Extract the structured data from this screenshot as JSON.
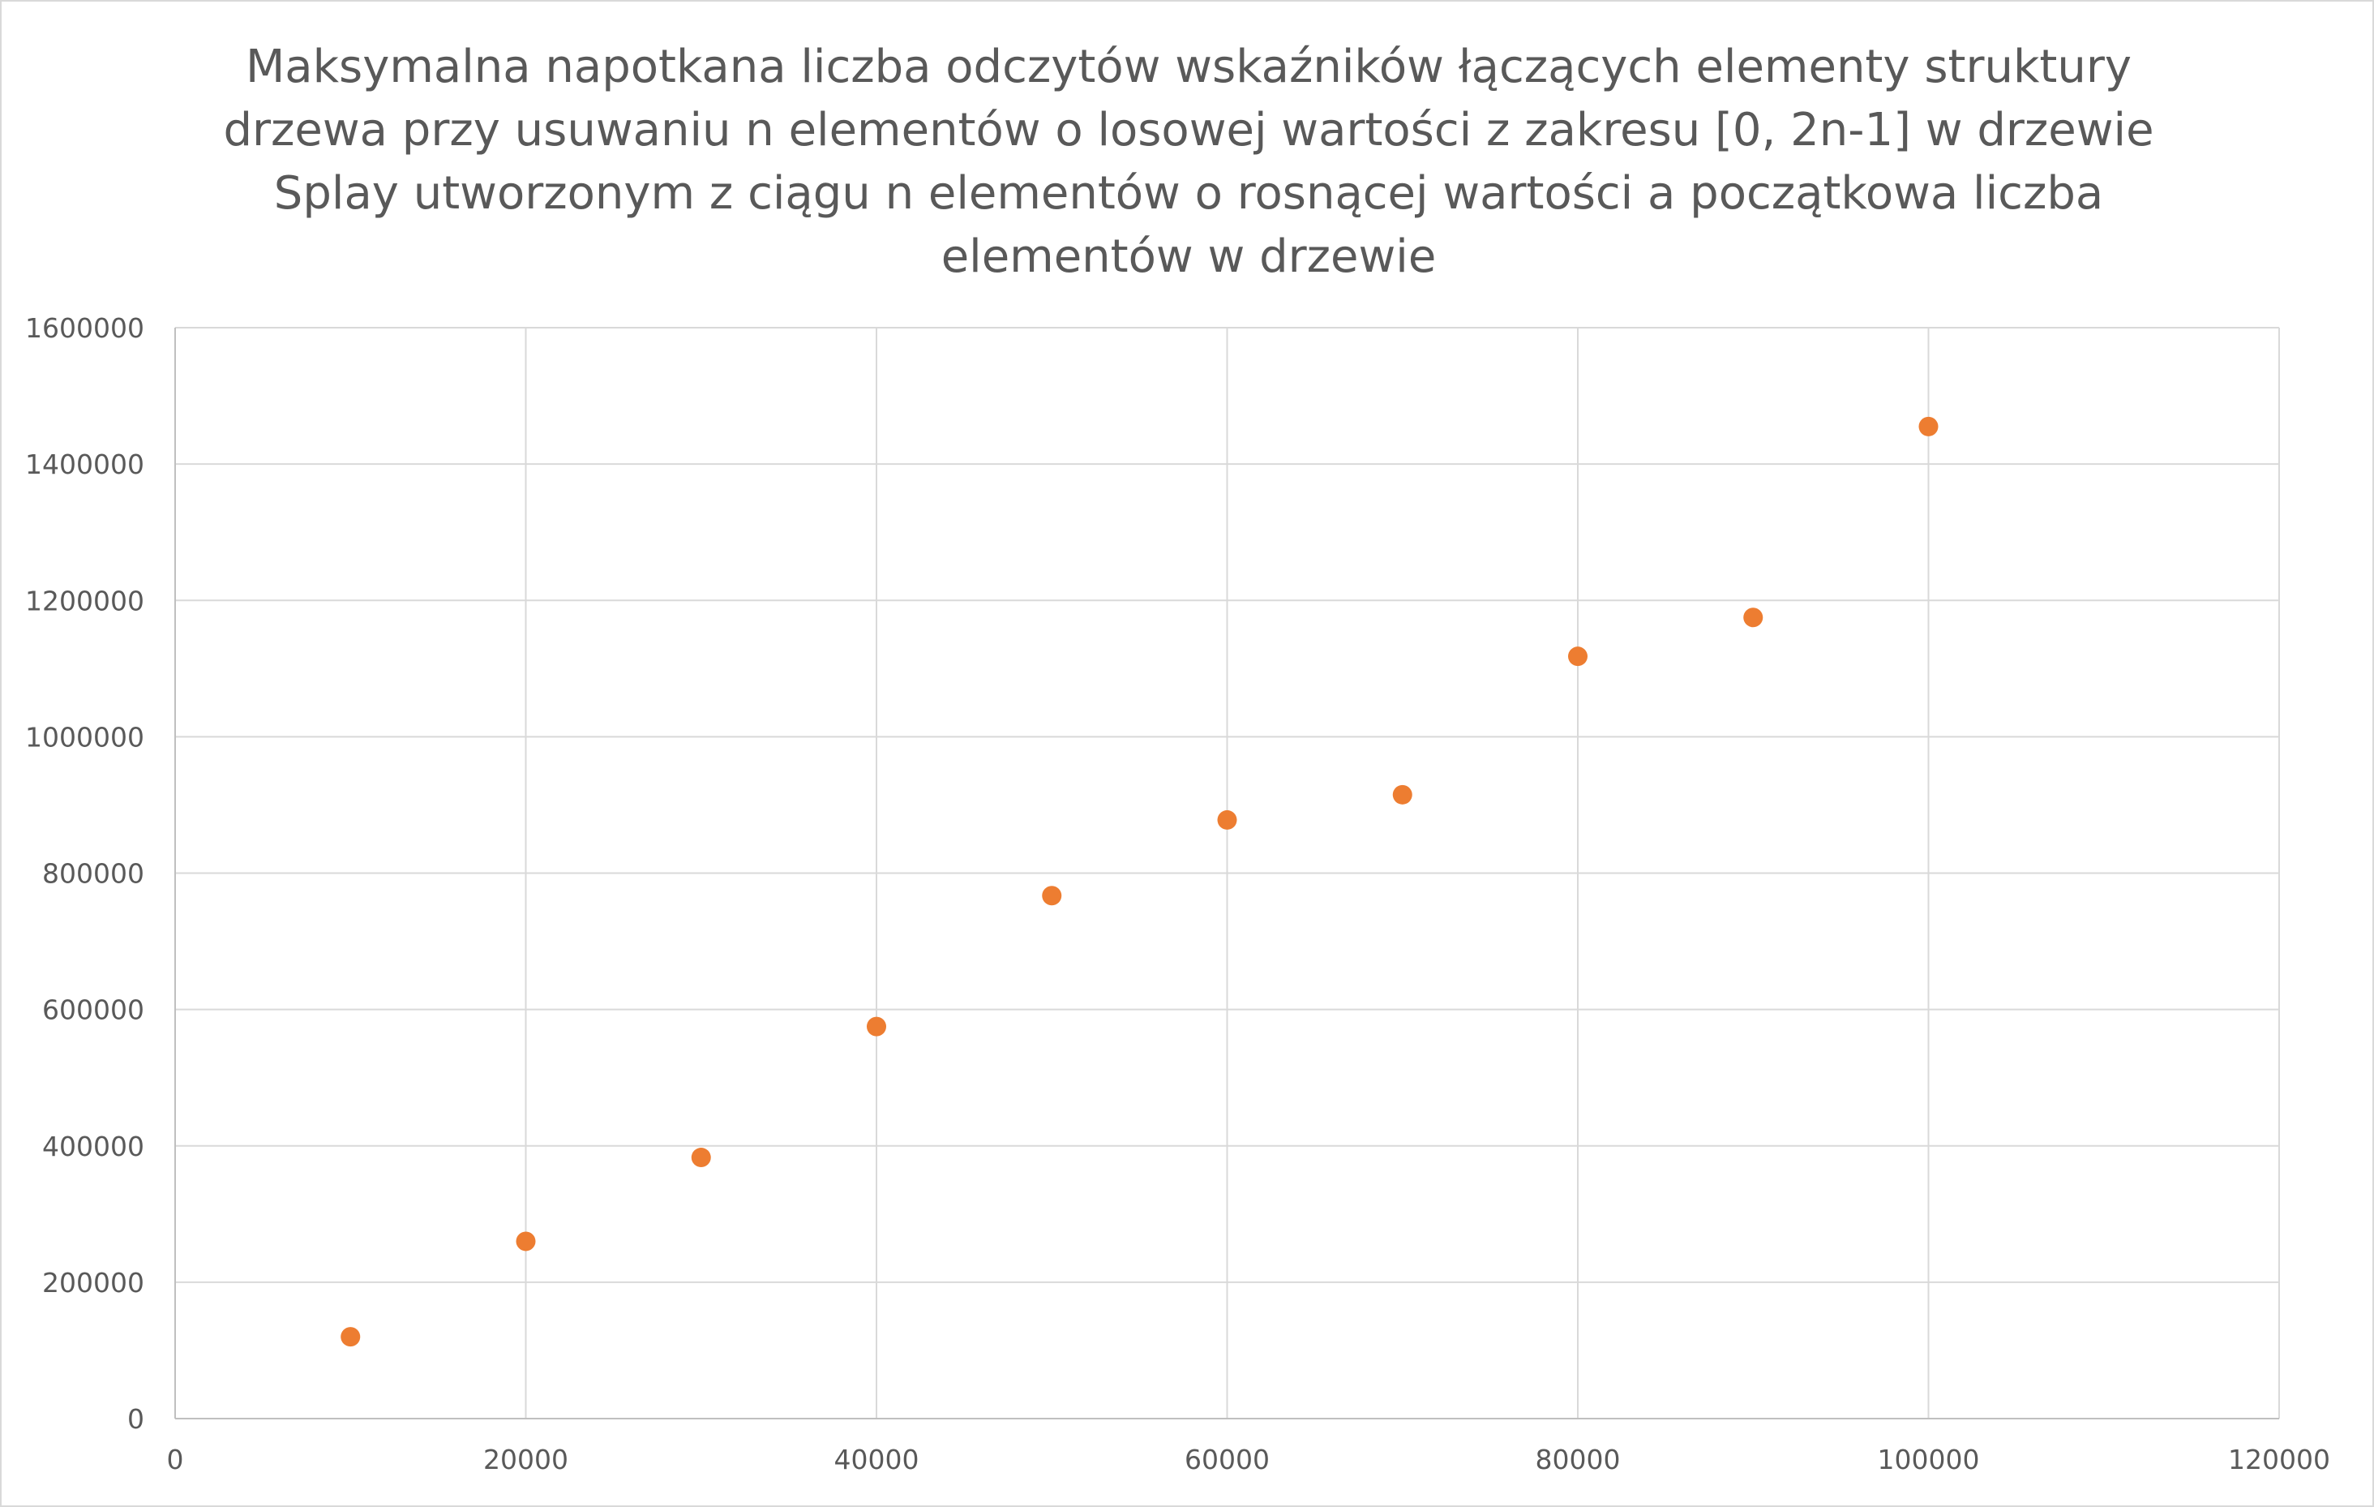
{
  "chart_data": {
    "type": "scatter",
    "title": "Maksymalna napotkana liczba odczytów wskaźników łączących elementy struktury drzewa przy usuwaniu n elementów o losowej wartości z zakresu [0, 2n-1] w drzewie Splay utworzonym z ciągu n elementów o rosnącej wartości a początkowa liczba elementów w drzewie",
    "title_lines": [
      "Maksymalna napotkana liczba odczytów wskaźników łączących elementy struktury",
      "drzewa przy usuwaniu n elementów o losowej wartości z zakresu [0, 2n-1] w drzewie",
      "Splay utworzonym z ciągu n elementów o rosnącej wartości a początkowa liczba",
      "elementów w drzewie"
    ],
    "xlabel": "",
    "ylabel": "",
    "xlim": [
      0,
      120000
    ],
    "ylim": [
      0,
      1600000
    ],
    "x_ticks": [
      "0",
      "20000",
      "40000",
      "60000",
      "80000",
      "100000",
      "120000"
    ],
    "y_ticks": [
      "0",
      "200000",
      "400000",
      "600000",
      "800000",
      "1000000",
      "1200000",
      "1400000",
      "1600000"
    ],
    "grid": true,
    "legend": "none",
    "series": [
      {
        "color": "#ed7d31",
        "x": [
          10000,
          20000,
          30000,
          40000,
          50000,
          60000,
          70000,
          80000,
          90000,
          100000
        ],
        "y": [
          120000,
          260000,
          383000,
          575000,
          767000,
          878000,
          915000,
          1118000,
          1175000,
          1455000
        ]
      }
    ]
  }
}
